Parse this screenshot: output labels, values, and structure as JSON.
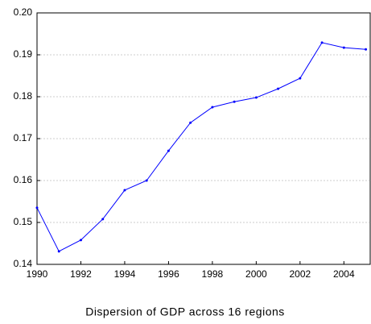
{
  "chart_data": {
    "type": "line",
    "title": "Dispersion of GDP across 16 regions",
    "x": [
      1990,
      1991,
      1992,
      1993,
      1994,
      1995,
      1996,
      1997,
      1998,
      1999,
      2000,
      2001,
      2002,
      2003,
      2004,
      2005
    ],
    "series": [
      {
        "color": "#0000ff",
        "values": [
          0.1535,
          0.1431,
          0.1458,
          0.1508,
          0.1577,
          0.16,
          0.1671,
          0.1738,
          0.1775,
          0.1788,
          0.1798,
          0.1819,
          0.1844,
          0.1929,
          0.1917,
          0.1913
        ]
      }
    ],
    "xlim": [
      1990,
      2005.2
    ],
    "xticks": [
      1990,
      1992,
      1994,
      1996,
      1998,
      2000,
      2002,
      2004
    ],
    "ylim": [
      0.14,
      0.2
    ],
    "yticks": [
      0.14,
      0.15,
      0.16,
      0.17,
      0.18,
      0.19,
      {
        "value": 0.2,
        "label": "0.20"
      }
    ],
    "grid": true
  }
}
